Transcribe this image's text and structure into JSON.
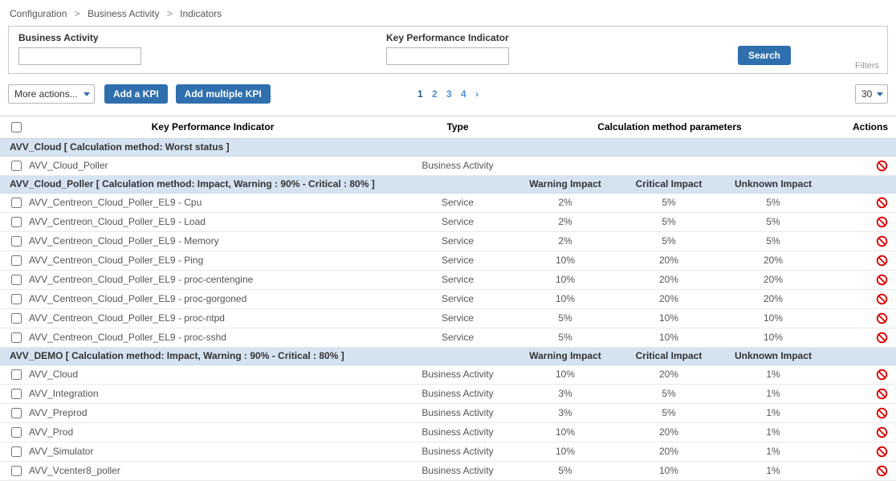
{
  "colors": {
    "accent_blue": "#2f6fad",
    "group_row_bg": "#d5e3f1",
    "disable_icon_red": "#d90000"
  },
  "breadcrumb": {
    "items": [
      "Configuration",
      "Business Activity",
      "Indicators"
    ],
    "separator": ">"
  },
  "filters": {
    "business_activity_label": "Business Activity",
    "business_activity_value": "",
    "kpi_label": "Key Performance Indicator",
    "kpi_value": "",
    "search_label": "Search",
    "filters_label": "Filters"
  },
  "toolbar": {
    "more_actions_label": "More actions...",
    "add_kpi_label": "Add a KPI",
    "add_multiple_kpi_label": "Add multiple KPI",
    "pagination": {
      "pages": [
        "1",
        "2",
        "3",
        "4"
      ],
      "current": "1",
      "next": "›"
    },
    "page_size": "30"
  },
  "table": {
    "headers": {
      "kpi": "Key Performance Indicator",
      "type": "Type",
      "calc": "Calculation method parameters",
      "actions": "Actions"
    },
    "impact_headers": [
      "Warning Impact",
      "Critical Impact",
      "Unknown Impact"
    ],
    "groups": [
      {
        "label": "AVV_Cloud [ Calculation method: Worst status ]",
        "show_impact_headers": false,
        "rows": [
          {
            "name": "AVV_Cloud_Poller",
            "type": "Business Activity",
            "warning": "",
            "critical": "",
            "unknown": ""
          }
        ]
      },
      {
        "label": "AVV_Cloud_Poller [ Calculation method: Impact, Warning : 90% - Critical : 80% ]",
        "show_impact_headers": true,
        "rows": [
          {
            "name": "AVV_Centreon_Cloud_Poller_EL9 - Cpu",
            "type": "Service",
            "warning": "2%",
            "critical": "5%",
            "unknown": "5%"
          },
          {
            "name": "AVV_Centreon_Cloud_Poller_EL9 - Load",
            "type": "Service",
            "warning": "2%",
            "critical": "5%",
            "unknown": "5%"
          },
          {
            "name": "AVV_Centreon_Cloud_Poller_EL9 - Memory",
            "type": "Service",
            "warning": "2%",
            "critical": "5%",
            "unknown": "5%"
          },
          {
            "name": "AVV_Centreon_Cloud_Poller_EL9 - Ping",
            "type": "Service",
            "warning": "10%",
            "critical": "20%",
            "unknown": "20%"
          },
          {
            "name": "AVV_Centreon_Cloud_Poller_EL9 - proc-centengine",
            "type": "Service",
            "warning": "10%",
            "critical": "20%",
            "unknown": "20%"
          },
          {
            "name": "AVV_Centreon_Cloud_Poller_EL9 - proc-gorgoned",
            "type": "Service",
            "warning": "10%",
            "critical": "20%",
            "unknown": "20%"
          },
          {
            "name": "AVV_Centreon_Cloud_Poller_EL9 - proc-ntpd",
            "type": "Service",
            "warning": "5%",
            "critical": "10%",
            "unknown": "10%"
          },
          {
            "name": "AVV_Centreon_Cloud_Poller_EL9 - proc-sshd",
            "type": "Service",
            "warning": "5%",
            "critical": "10%",
            "unknown": "10%"
          }
        ]
      },
      {
        "label": "AVV_DEMO [ Calculation method: Impact, Warning : 90% - Critical : 80% ]",
        "show_impact_headers": true,
        "rows": [
          {
            "name": "AVV_Cloud",
            "type": "Business Activity",
            "warning": "10%",
            "critical": "20%",
            "unknown": "1%"
          },
          {
            "name": "AVV_Integration",
            "type": "Business Activity",
            "warning": "3%",
            "critical": "5%",
            "unknown": "1%"
          },
          {
            "name": "AVV_Preprod",
            "type": "Business Activity",
            "warning": "3%",
            "critical": "5%",
            "unknown": "1%"
          },
          {
            "name": "AVV_Prod",
            "type": "Business Activity",
            "warning": "10%",
            "critical": "20%",
            "unknown": "1%"
          },
          {
            "name": "AVV_Simulator",
            "type": "Business Activity",
            "warning": "10%",
            "critical": "20%",
            "unknown": "1%"
          },
          {
            "name": "AVV_Vcenter8_poller",
            "type": "Business Activity",
            "warning": "5%",
            "critical": "10%",
            "unknown": "1%"
          }
        ]
      }
    ]
  }
}
